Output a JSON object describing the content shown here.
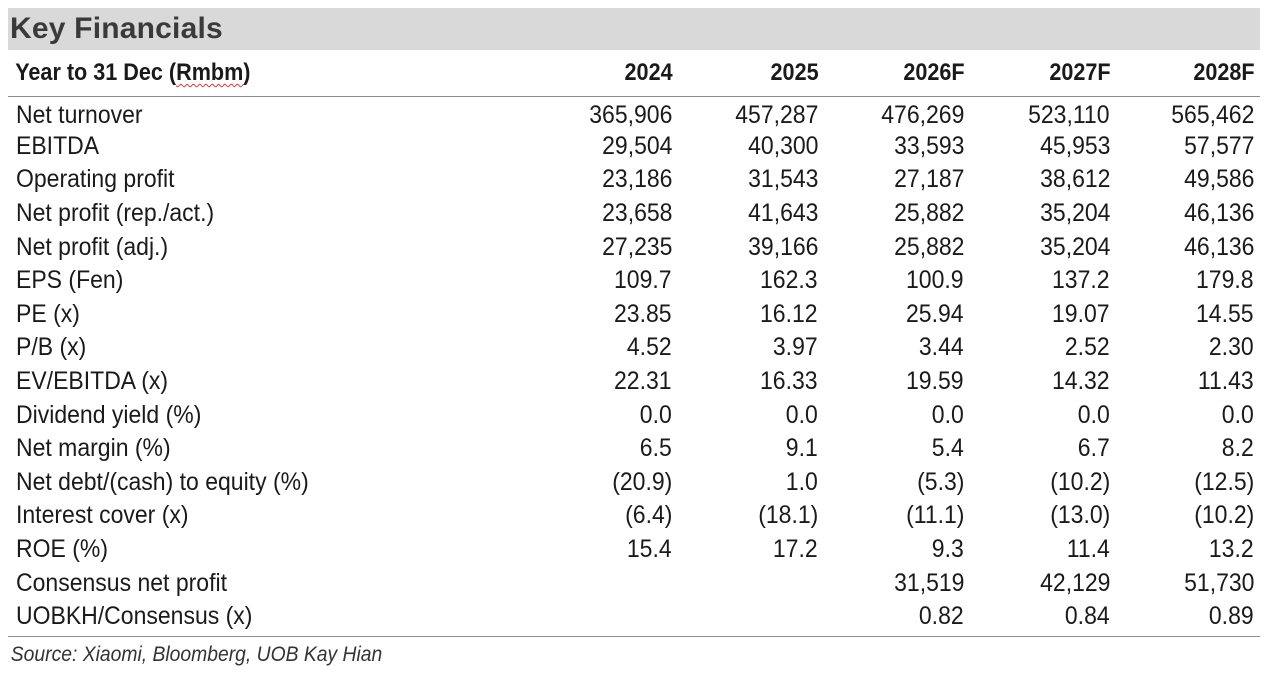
{
  "title": "Key Financials",
  "header": {
    "label": "Year to 31 Dec (",
    "label_unit": "Rmbm",
    "label_close": ")",
    "years": [
      "2024",
      "2025",
      "2026F",
      "2027F",
      "2028F"
    ]
  },
  "rows": [
    {
      "label": "Net turnover",
      "values": [
        "365,906",
        "457,287",
        "476,269",
        "523,110",
        "565,462"
      ]
    },
    {
      "label": "EBITDA",
      "values": [
        "29,504",
        "40,300",
        "33,593",
        "45,953",
        "57,577"
      ]
    },
    {
      "label": "Operating profit",
      "values": [
        "23,186",
        "31,543",
        "27,187",
        "38,612",
        "49,586"
      ]
    },
    {
      "label": "Net profit (rep./act.)",
      "values": [
        "23,658",
        "41,643",
        "25,882",
        "35,204",
        "46,136"
      ]
    },
    {
      "label": "Net profit (adj.)",
      "values": [
        "27,235",
        "39,166",
        "25,882",
        "35,204",
        "46,136"
      ]
    },
    {
      "label": "EPS (Fen)",
      "values": [
        "109.7",
        "162.3",
        "100.9",
        "137.2",
        "179.8"
      ]
    },
    {
      "label": "PE (x)",
      "values": [
        "23.85",
        "16.12",
        "25.94",
        "19.07",
        "14.55"
      ]
    },
    {
      "label": "P/B (x)",
      "values": [
        "4.52",
        "3.97",
        "3.44",
        "2.52",
        "2.30"
      ]
    },
    {
      "label": "EV/EBITDA (x)",
      "values": [
        "22.31",
        "16.33",
        "19.59",
        "14.32",
        "11.43"
      ]
    },
    {
      "label": "Dividend yield (%)",
      "values": [
        "0.0",
        "0.0",
        "0.0",
        "0.0",
        "0.0"
      ]
    },
    {
      "label": "Net margin (%)",
      "values": [
        "6.5",
        "9.1",
        "5.4",
        "6.7",
        "8.2"
      ]
    },
    {
      "label": "Net debt/(cash) to equity (%)",
      "values": [
        "(20.9)",
        "1.0",
        "(5.3)",
        "(10.2)",
        "(12.5)"
      ]
    },
    {
      "label": "Interest cover (x)",
      "values": [
        "(6.4)",
        "(18.1)",
        "(11.1)",
        "(13.0)",
        "(10.2)"
      ]
    },
    {
      "label": "ROE (%)",
      "values": [
        "15.4",
        "17.2",
        "9.3",
        "11.4",
        "13.2"
      ]
    },
    {
      "label": "Consensus net profit",
      "values": [
        "",
        "",
        "31,519",
        "42,129",
        "51,730"
      ]
    },
    {
      "label": "UOBKH/Consensus (x)",
      "values": [
        "",
        "",
        "0.82",
        "0.84",
        "0.89"
      ]
    }
  ],
  "source": "Source: Xiaomi, Bloomberg, UOB Kay Hian"
}
